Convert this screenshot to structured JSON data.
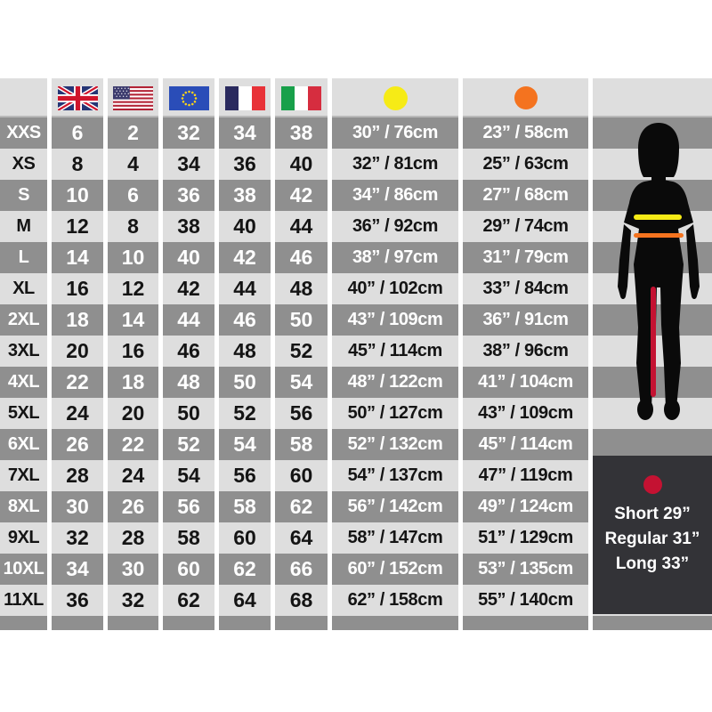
{
  "colors": {
    "row_dark": "#8f8f8f",
    "row_light": "#dedede",
    "panel_dark": "#333337",
    "chest_dot_yellow": "#f6eb16",
    "waist_dot_orange": "#f4731f",
    "inseam_red": "#c41232",
    "figure_black": "#0a0a0a"
  },
  "table": {
    "header": {
      "size_column_label": "",
      "flag_icons": [
        "uk-flag-icon",
        "us-flag-icon",
        "eu-flag-icon",
        "france-flag-icon",
        "italy-flag-icon"
      ],
      "chest_marker_icon": "chest-dot-icon",
      "waist_marker_icon": "waist-dot-icon"
    },
    "column_keys": [
      "size",
      "uk",
      "us",
      "eu",
      "fr",
      "it",
      "chest",
      "waist"
    ],
    "rows": [
      {
        "size": "XXS",
        "uk": "6",
        "us": "2",
        "eu": "32",
        "fr": "34",
        "it": "38",
        "chest": "30” / 76cm",
        "waist": "23” / 58cm"
      },
      {
        "size": "XS",
        "uk": "8",
        "us": "4",
        "eu": "34",
        "fr": "36",
        "it": "40",
        "chest": "32” / 81cm",
        "waist": "25” / 63cm"
      },
      {
        "size": "S",
        "uk": "10",
        "us": "6",
        "eu": "36",
        "fr": "38",
        "it": "42",
        "chest": "34” / 86cm",
        "waist": "27” / 68cm"
      },
      {
        "size": "M",
        "uk": "12",
        "us": "8",
        "eu": "38",
        "fr": "40",
        "it": "44",
        "chest": "36” / 92cm",
        "waist": "29” / 74cm"
      },
      {
        "size": "L",
        "uk": "14",
        "us": "10",
        "eu": "40",
        "fr": "42",
        "it": "46",
        "chest": "38” / 97cm",
        "waist": "31” / 79cm"
      },
      {
        "size": "XL",
        "uk": "16",
        "us": "12",
        "eu": "42",
        "fr": "44",
        "it": "48",
        "chest": "40” / 102cm",
        "waist": "33” / 84cm"
      },
      {
        "size": "2XL",
        "uk": "18",
        "us": "14",
        "eu": "44",
        "fr": "46",
        "it": "50",
        "chest": "43” / 109cm",
        "waist": "36” / 91cm"
      },
      {
        "size": "3XL",
        "uk": "20",
        "us": "16",
        "eu": "46",
        "fr": "48",
        "it": "52",
        "chest": "45” / 114cm",
        "waist": "38” / 96cm"
      },
      {
        "size": "4XL",
        "uk": "22",
        "us": "18",
        "eu": "48",
        "fr": "50",
        "it": "54",
        "chest": "48” / 122cm",
        "waist": "41” / 104cm"
      },
      {
        "size": "5XL",
        "uk": "24",
        "us": "20",
        "eu": "50",
        "fr": "52",
        "it": "56",
        "chest": "50” / 127cm",
        "waist": "43” / 109cm"
      },
      {
        "size": "6XL",
        "uk": "26",
        "us": "22",
        "eu": "52",
        "fr": "54",
        "it": "58",
        "chest": "52” / 132cm",
        "waist": "45” / 114cm"
      },
      {
        "size": "7XL",
        "uk": "28",
        "us": "24",
        "eu": "54",
        "fr": "56",
        "it": "60",
        "chest": "54” / 137cm",
        "waist": "47” / 119cm"
      },
      {
        "size": "8XL",
        "uk": "30",
        "us": "26",
        "eu": "56",
        "fr": "58",
        "it": "62",
        "chest": "56” / 142cm",
        "waist": "49” / 124cm"
      },
      {
        "size": "9XL",
        "uk": "32",
        "us": "28",
        "eu": "58",
        "fr": "60",
        "it": "64",
        "chest": "58” / 147cm",
        "waist": "51” / 129cm"
      },
      {
        "size": "10XL",
        "uk": "34",
        "us": "30",
        "eu": "60",
        "fr": "62",
        "it": "66",
        "chest": "60” / 152cm",
        "waist": "53” / 135cm"
      },
      {
        "size": "11XL",
        "uk": "36",
        "us": "32",
        "eu": "62",
        "fr": "64",
        "it": "68",
        "chest": "62” / 158cm",
        "waist": "55” / 140cm"
      }
    ]
  },
  "figure": {
    "icon": "female-body-silhouette",
    "chest_line_icon": "chest-line-yellow",
    "waist_line_icon": "waist-line-orange",
    "inseam_line_icon": "inseam-line-red"
  },
  "panel": {
    "marker_icon": "inseam-dot-icon",
    "lengths": [
      "Short 29”",
      "Regular 31”",
      "Long 33”"
    ]
  }
}
